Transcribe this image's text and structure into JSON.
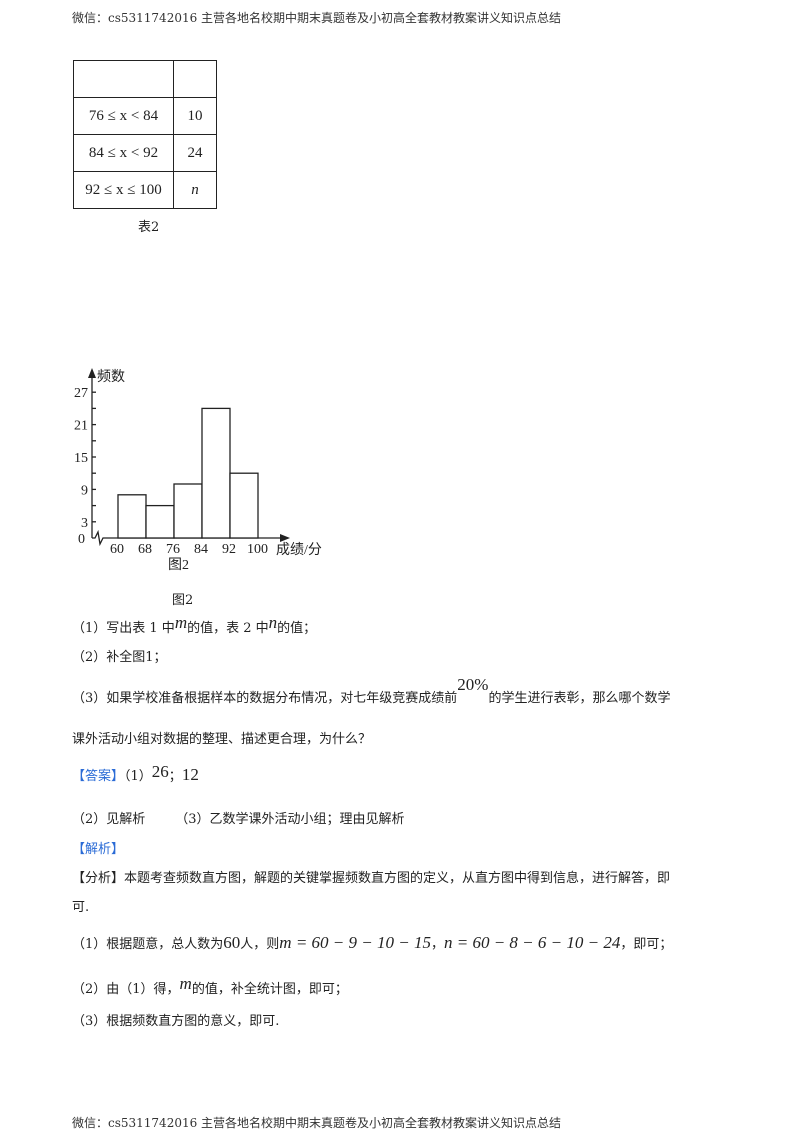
{
  "header": {
    "text": "微信：cs5311742016  主营各地名校期中期末真题卷及小初高全套教材教案讲义知识点总结"
  },
  "footer": {
    "text": "微信：cs5311742016  主营各地名校期中期末真题卷及小初高全套教材教案讲义知识点总结"
  },
  "table2": {
    "rows": [
      {
        "range": "",
        "count": ""
      },
      {
        "range": "76 ≤ x < 84",
        "count": "10"
      },
      {
        "range": "84 ≤ x < 92",
        "count": "24"
      },
      {
        "range": "92 ≤ x ≤ 100",
        "count": "n"
      }
    ],
    "caption": "表2"
  },
  "chart_data": {
    "type": "bar",
    "title": "图2",
    "ylabel": "频数",
    "xlabel": "成绩/分",
    "bin_edges": [
      60,
      68,
      76,
      84,
      92,
      100
    ],
    "categories": [
      "60-68",
      "68-76",
      "76-84",
      "84-92",
      "92-100"
    ],
    "values": [
      8,
      6,
      10,
      24,
      12
    ],
    "yticks": [
      0,
      3,
      9,
      15,
      21,
      27
    ],
    "ylim": [
      0,
      27
    ],
    "grid": false
  },
  "figure_caption": "图2",
  "questions": {
    "q1_a": "（1）写出表 1 中",
    "q1_m": "m",
    "q1_b": "的值，表 2 中",
    "q1_n": "n",
    "q1_c": "的值；",
    "q2": "（2）补全图1；",
    "q3_a": "（3）如果学校准备根据样本的数据分布情况，对七年级竞赛成绩前",
    "q3_pct": "20%",
    "q3_b": "的学生进行表彰，那么哪个数学",
    "q3_c": "课外活动小组对数据的整理、描述更合理，为什么？"
  },
  "answer": {
    "label": "【答案】",
    "a1_prefix": "（1）",
    "a1_m": "26",
    "a1_sep": "；",
    "a1_n": "12",
    "a2": "（2）见解析",
    "a3": "（3）乙数学课外活动小组；理由见解析"
  },
  "analysis": {
    "label": "【解析】",
    "summary_label": "【分析】",
    "summary": "本题考查频数直方图，解题的关键掌握频数直方图的定义，从直方图中得到信息，进行解答，即",
    "summary_end": "可.",
    "s1_a": "（1）根据题意，总人数为",
    "s1_total": "60",
    "s1_b": "人，则",
    "s1_eq1": "m = 60 − 9 − 10 − 15",
    "s1_sep": "，",
    "s1_eq2": "n = 60 − 8 − 6 − 10 − 24",
    "s1_c": "，即可；",
    "s2_a": "（2）由（1）得，",
    "s2_m": "m",
    "s2_b": "的值，补全统计图，即可；",
    "s3": "（3）根据频数直方图的意义，即可."
  },
  "colors": {
    "accent": "#2a6bd6",
    "text": "#222222"
  }
}
